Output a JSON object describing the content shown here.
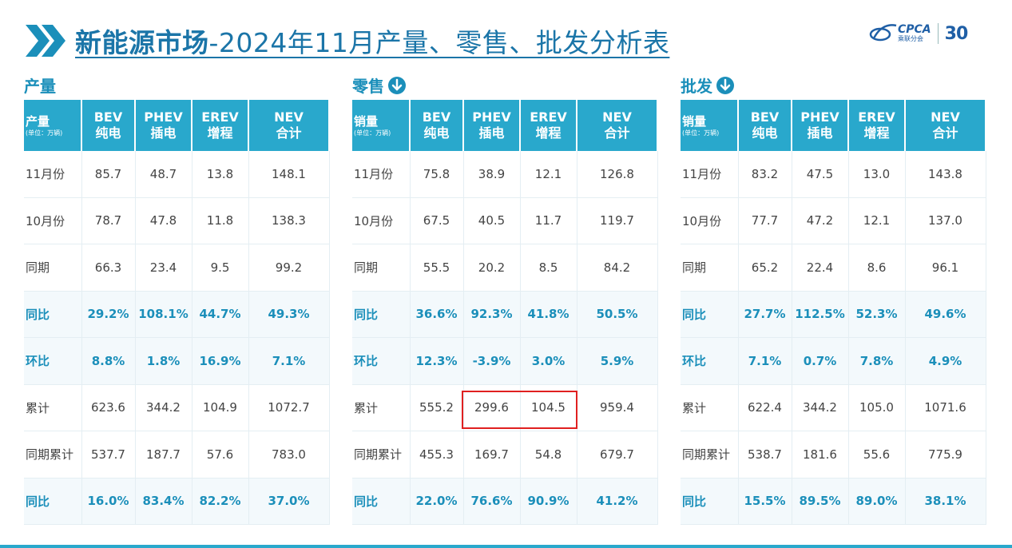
{
  "title": {
    "main": "新能源市场",
    "rest": "-2024年11月产量、零售、批发分析表"
  },
  "logo": {
    "brand": "CPCA",
    "sub": "乘联分会",
    "anniv": "30"
  },
  "colors": {
    "accent": "#29a8cc",
    "title": "#1b75a8",
    "highlight": "#e02020"
  },
  "sections": [
    {
      "title": "产量",
      "has_icon": false,
      "header": {
        "label": "产量",
        "unit": "(单位：万辆)",
        "cols": [
          [
            "BEV",
            "纯电"
          ],
          [
            "PHEV",
            "插电"
          ],
          [
            "EREV",
            "增程"
          ],
          [
            "NEV",
            "合计"
          ]
        ]
      },
      "rows": [
        {
          "label": "11月份",
          "values": [
            "85.7",
            "48.7",
            "13.8",
            "148.1"
          ],
          "pct": false
        },
        {
          "label": "10月份",
          "values": [
            "78.7",
            "47.8",
            "11.8",
            "138.3"
          ],
          "pct": false
        },
        {
          "label": "同期",
          "values": [
            "66.3",
            "23.4",
            "9.5",
            "99.2"
          ],
          "pct": false
        },
        {
          "label": "同比",
          "values": [
            "29.2%",
            "108.1%",
            "44.7%",
            "49.3%"
          ],
          "pct": true
        },
        {
          "label": "环比",
          "values": [
            "8.8%",
            "1.8%",
            "16.9%",
            "7.1%"
          ],
          "pct": true
        },
        {
          "label": "累计",
          "values": [
            "623.6",
            "344.2",
            "104.9",
            "1072.7"
          ],
          "pct": false
        },
        {
          "label": "同期累计",
          "values": [
            "537.7",
            "187.7",
            "57.6",
            "783.0"
          ],
          "pct": false
        },
        {
          "label": "同比",
          "values": [
            "16.0%",
            "83.4%",
            "82.2%",
            "37.0%"
          ],
          "pct": true
        }
      ]
    },
    {
      "title": "零售",
      "has_icon": true,
      "header": {
        "label": "销量",
        "unit": "(单位：万辆)",
        "cols": [
          [
            "BEV",
            "纯电"
          ],
          [
            "PHEV",
            "插电"
          ],
          [
            "EREV",
            "增程"
          ],
          [
            "NEV",
            "合计"
          ]
        ]
      },
      "rows": [
        {
          "label": "11月份",
          "values": [
            "75.8",
            "38.9",
            "12.1",
            "126.8"
          ],
          "pct": false
        },
        {
          "label": "10月份",
          "values": [
            "67.5",
            "40.5",
            "11.7",
            "119.7"
          ],
          "pct": false
        },
        {
          "label": "同期",
          "values": [
            "55.5",
            "20.2",
            "8.5",
            "84.2"
          ],
          "pct": false
        },
        {
          "label": "同比",
          "values": [
            "36.6%",
            "92.3%",
            "41.8%",
            "50.5%"
          ],
          "pct": true
        },
        {
          "label": "环比",
          "values": [
            "12.3%",
            "-3.9%",
            "3.0%",
            "5.9%"
          ],
          "pct": true
        },
        {
          "label": "累计",
          "values": [
            "555.2",
            "299.6",
            "104.5",
            "959.4"
          ],
          "pct": false
        },
        {
          "label": "同期累计",
          "values": [
            "455.3",
            "169.7",
            "54.8",
            "679.7"
          ],
          "pct": false
        },
        {
          "label": "同比",
          "values": [
            "22.0%",
            "76.6%",
            "90.9%",
            "41.2%"
          ],
          "pct": true
        }
      ]
    },
    {
      "title": "批发",
      "has_icon": true,
      "header": {
        "label": "销量",
        "unit": "(单位：万辆)",
        "cols": [
          [
            "BEV",
            "纯电"
          ],
          [
            "PHEV",
            "插电"
          ],
          [
            "EREV",
            "增程"
          ],
          [
            "NEV",
            "合计"
          ]
        ]
      },
      "rows": [
        {
          "label": "11月份",
          "values": [
            "83.2",
            "47.5",
            "13.0",
            "143.8"
          ],
          "pct": false
        },
        {
          "label": "10月份",
          "values": [
            "77.7",
            "47.2",
            "12.1",
            "137.0"
          ],
          "pct": false
        },
        {
          "label": "同期",
          "values": [
            "65.2",
            "22.4",
            "8.6",
            "96.1"
          ],
          "pct": false
        },
        {
          "label": "同比",
          "values": [
            "27.7%",
            "112.5%",
            "52.3%",
            "49.6%"
          ],
          "pct": true
        },
        {
          "label": "环比",
          "values": [
            "7.1%",
            "0.7%",
            "7.8%",
            "4.9%"
          ],
          "pct": true
        },
        {
          "label": "累计",
          "values": [
            "622.4",
            "344.2",
            "105.0",
            "1071.6"
          ],
          "pct": false
        },
        {
          "label": "同期累计",
          "values": [
            "538.7",
            "181.6",
            "55.6",
            "775.9"
          ],
          "pct": false
        },
        {
          "label": "同比",
          "values": [
            "15.5%",
            "89.5%",
            "89.0%",
            "38.1%"
          ],
          "pct": true
        }
      ]
    }
  ]
}
